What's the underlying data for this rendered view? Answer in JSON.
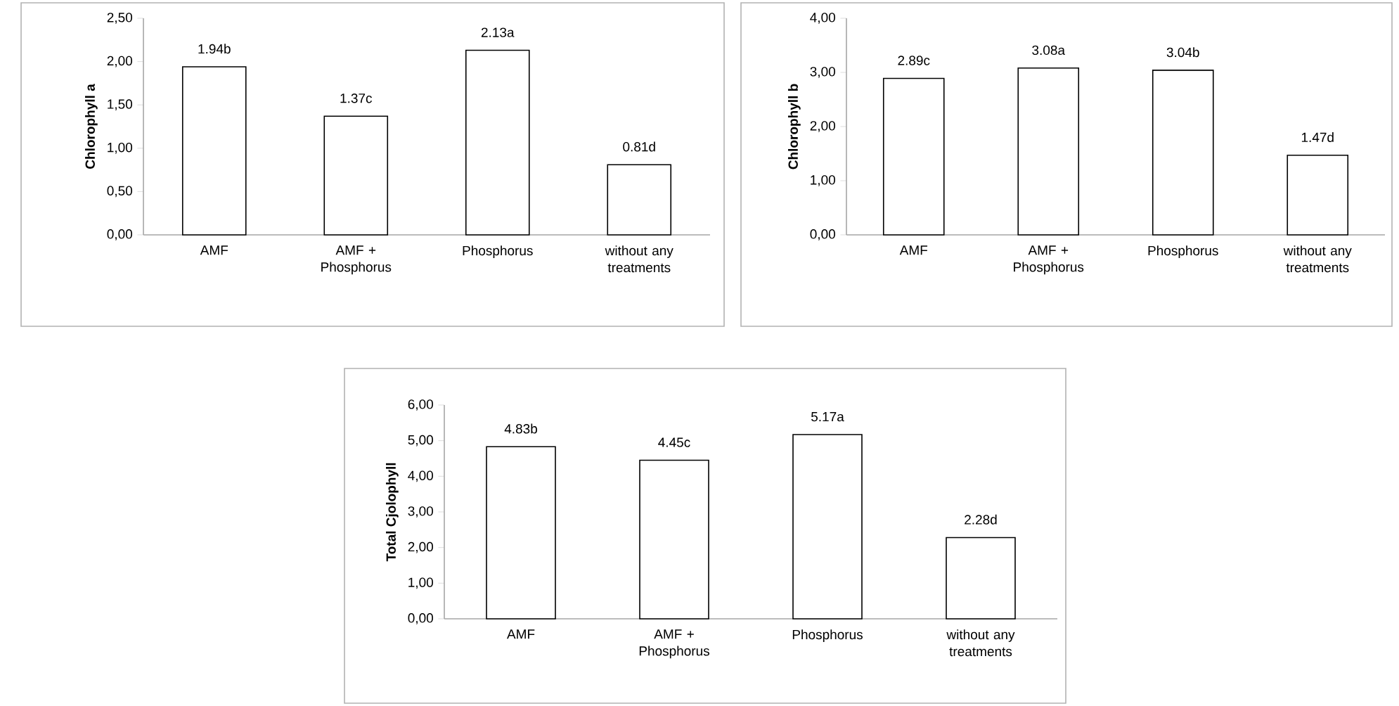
{
  "chart_data": [
    {
      "type": "bar",
      "ylabel": "Chlorophyll a",
      "categories": [
        "AMF",
        "AMF + Phosphorus",
        "Phosphorus",
        "without any treatments"
      ],
      "values": [
        1.94,
        1.37,
        2.13,
        0.81
      ],
      "value_labels": [
        "1.94b",
        "1.37c",
        "2.13a",
        "0.81d"
      ],
      "color": "#ffffff",
      "ylim": [
        0,
        2.5
      ],
      "yticks": [
        {
          "value": 0,
          "label": "0,00"
        },
        {
          "value": 0.5,
          "label": "0,50"
        },
        {
          "value": 1,
          "label": "1,00"
        },
        {
          "value": 1.5,
          "label": "1,50"
        },
        {
          "value": 2,
          "label": "2,00"
        },
        {
          "value": 2.5,
          "label": "2,50"
        }
      ]
    },
    {
      "type": "bar",
      "ylabel": "Chlorophyll b",
      "categories": [
        "AMF",
        "AMF + Phosphorus",
        "Phosphorus",
        "without any treatments"
      ],
      "values": [
        2.89,
        3.08,
        3.04,
        1.47
      ],
      "value_labels": [
        "2.89c",
        "3.08a",
        "3.04b",
        "1.47d"
      ],
      "color": "#ffffff",
      "ylim": [
        0,
        4
      ],
      "yticks": [
        {
          "value": 0,
          "label": "0,00"
        },
        {
          "value": 1,
          "label": "1,00"
        },
        {
          "value": 2,
          "label": "2,00"
        },
        {
          "value": 3,
          "label": "3,00"
        },
        {
          "value": 4,
          "label": "4,00"
        }
      ]
    },
    {
      "type": "bar",
      "ylabel": "Total Cjolophyll",
      "categories": [
        "AMF",
        "AMF + Phosphorus",
        "Phosphorus",
        "without any treatments"
      ],
      "values": [
        4.83,
        4.45,
        5.17,
        2.28
      ],
      "value_labels": [
        "4.83b",
        "4.45c",
        "5.17a",
        "2.28d"
      ],
      "color": "#ffffff",
      "ylim": [
        0,
        6
      ],
      "yticks": [
        {
          "value": 0,
          "label": "0,00"
        },
        {
          "value": 1,
          "label": "1,00"
        },
        {
          "value": 2,
          "label": "2,00"
        },
        {
          "value": 3,
          "label": "3,00"
        },
        {
          "value": 4,
          "label": "4,00"
        },
        {
          "value": 5,
          "label": "5,00"
        },
        {
          "value": 6,
          "label": "6,00"
        }
      ]
    }
  ]
}
